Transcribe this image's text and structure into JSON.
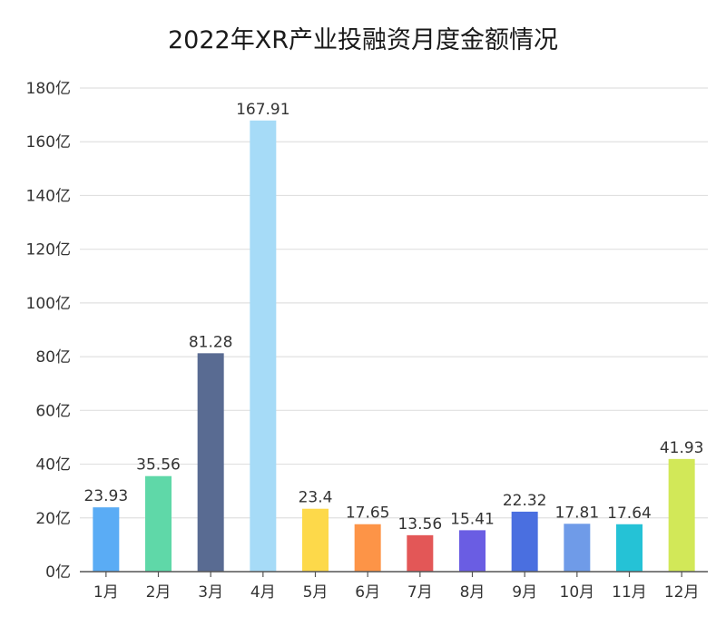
{
  "chart_data": {
    "type": "bar",
    "title": "2022年XR产业投融资月度金额情况",
    "xlabel": "",
    "ylabel": "",
    "ylim": [
      0,
      180
    ],
    "y_ticks": [
      0,
      20,
      40,
      60,
      80,
      100,
      120,
      140,
      160,
      180
    ],
    "y_tick_labels": [
      "0亿",
      "20亿",
      "40亿",
      "60亿",
      "80亿",
      "100亿",
      "120亿",
      "140亿",
      "160亿",
      "180亿"
    ],
    "grid": true,
    "legend": "none",
    "categories": [
      "1月",
      "2月",
      "3月",
      "4月",
      "5月",
      "6月",
      "7月",
      "8月",
      "9月",
      "10月",
      "11月",
      "12月"
    ],
    "values": [
      23.93,
      35.56,
      81.28,
      167.91,
      23.4,
      17.65,
      13.56,
      15.41,
      22.32,
      17.81,
      17.64,
      41.93
    ],
    "value_labels": [
      "23.93",
      "35.56",
      "81.28",
      "167.91",
      "23.4",
      "17.65",
      "13.56",
      "15.41",
      "22.32",
      "17.81",
      "17.64",
      "41.93"
    ],
    "colors": [
      "#5aacf5",
      "#5fd8a8",
      "#596b92",
      "#a6dbf7",
      "#fdd94a",
      "#fd9447",
      "#e35757",
      "#6a5de3",
      "#4a6fe0",
      "#6f9be8",
      "#25c2d6",
      "#d2e858"
    ]
  }
}
